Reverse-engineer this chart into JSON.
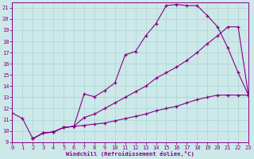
{
  "xlabel": "Windchill (Refroidissement éolien,°C)",
  "bg_color": "#cce8e8",
  "grid_color": "#aad4d4",
  "line_color": "#880088",
  "xlim": [
    0,
    23
  ],
  "ylim": [
    9,
    21.5
  ],
  "yticks": [
    9,
    10,
    11,
    12,
    13,
    14,
    15,
    16,
    17,
    18,
    19,
    20,
    21
  ],
  "xticks": [
    0,
    1,
    2,
    3,
    4,
    5,
    6,
    7,
    8,
    9,
    10,
    11,
    12,
    13,
    14,
    15,
    16,
    17,
    18,
    19,
    20,
    21,
    22,
    23
  ],
  "curve1_x": [
    0,
    1,
    2,
    3,
    4,
    5,
    6,
    7,
    8,
    9,
    10,
    11,
    12,
    13,
    14,
    15,
    16,
    17,
    18,
    19,
    20,
    21,
    22,
    23
  ],
  "curve1_y": [
    11.6,
    11.1,
    9.3,
    9.8,
    9.9,
    10.3,
    10.4,
    13.3,
    13.05,
    13.6,
    14.3,
    16.8,
    17.1,
    18.5,
    19.6,
    21.2,
    21.3,
    21.2,
    21.2,
    20.3,
    19.3,
    17.4,
    15.2,
    13.2
  ],
  "curve2_x": [
    2,
    3,
    4,
    5,
    6,
    7,
    8,
    9,
    10,
    11,
    12,
    13,
    14,
    15,
    16,
    17,
    18,
    19,
    20,
    21,
    22,
    23
  ],
  "curve2_y": [
    9.3,
    9.8,
    9.9,
    10.3,
    10.4,
    11.2,
    11.5,
    12.0,
    12.5,
    13.0,
    13.5,
    14.0,
    14.7,
    15.2,
    15.7,
    16.3,
    17.0,
    17.8,
    18.5,
    19.3,
    19.3,
    13.2
  ],
  "curve3_x": [
    2,
    3,
    4,
    5,
    6,
    7,
    8,
    9,
    10,
    11,
    12,
    13,
    14,
    15,
    16,
    17,
    18,
    19,
    20,
    21,
    22,
    23
  ],
  "curve3_y": [
    9.3,
    9.8,
    9.9,
    10.3,
    10.4,
    10.5,
    10.6,
    10.7,
    10.9,
    11.1,
    11.3,
    11.5,
    11.8,
    12.0,
    12.2,
    12.5,
    12.8,
    13.0,
    13.2,
    13.2,
    13.2,
    13.2
  ]
}
